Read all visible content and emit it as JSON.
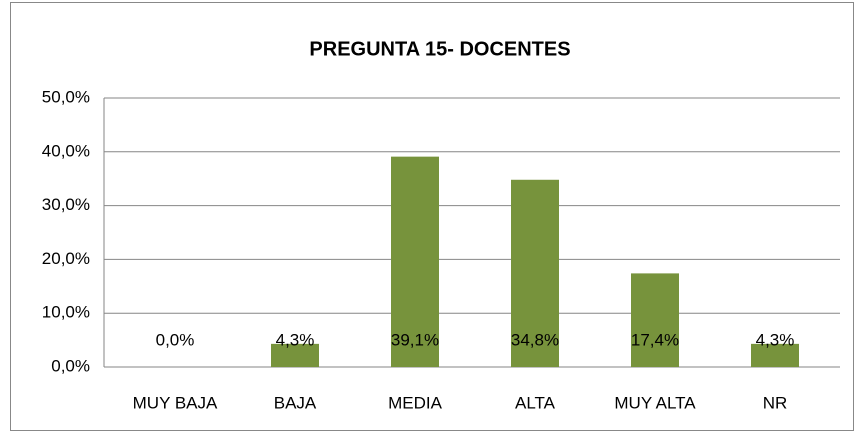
{
  "chart_data": {
    "type": "bar",
    "title": "PREGUNTA 15- DOCENTES",
    "categories": [
      "MUY BAJA",
      "BAJA",
      "MEDIA",
      "ALTA",
      "MUY ALTA",
      "NR"
    ],
    "values": [
      0,
      4.3,
      39.1,
      34.8,
      17.4,
      4.3
    ],
    "value_labels": [
      "0,0%",
      "4,3%",
      "39,1%",
      "34,8%",
      "17,4%",
      "4,3%"
    ],
    "color": "#77933c",
    "ylim": [
      0,
      50
    ],
    "yticks": [
      {
        "value": 0,
        "label": "0,0%"
      },
      {
        "value": 10,
        "label": "10,0%"
      },
      {
        "value": 20,
        "label": "20,0%"
      },
      {
        "value": 30,
        "label": "30,0%"
      },
      {
        "value": 40,
        "label": "40,0%"
      },
      {
        "value": 50,
        "label": "50,0%"
      }
    ],
    "grid": true
  }
}
